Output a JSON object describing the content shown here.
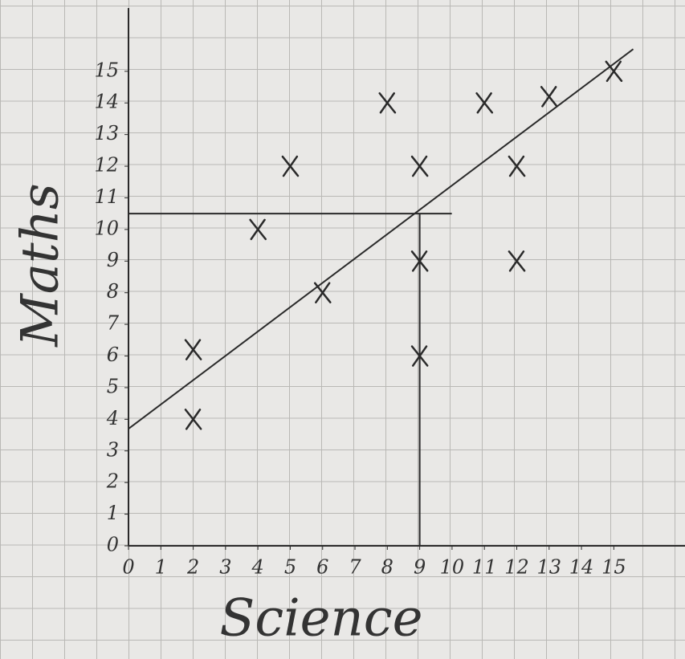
{
  "chart_data": {
    "type": "scatter",
    "xlabel": "Science",
    "ylabel": "Maths",
    "x": [
      2,
      2,
      4,
      5,
      6,
      8,
      9,
      9,
      9,
      11,
      12,
      12,
      13,
      15
    ],
    "values": [
      4,
      6.2,
      10,
      12,
      8,
      14,
      12,
      9,
      6,
      14,
      12,
      9,
      14.2,
      15
    ],
    "color": "#2a2a2a",
    "trendline": {
      "x": [
        0,
        15.6
      ],
      "y": [
        3.7,
        15.7
      ]
    },
    "reading": {
      "x": 9,
      "y": 10.5
    },
    "xlim": [
      0,
      17.2
    ],
    "ylim": [
      0,
      17
    ],
    "xticks": [
      0,
      1,
      2,
      3,
      4,
      5,
      6,
      7,
      8,
      9,
      10,
      11,
      12,
      13,
      14,
      15
    ],
    "yticks": [
      0,
      1,
      2,
      3,
      4,
      5,
      6,
      7,
      8,
      9,
      10,
      11,
      12,
      13,
      14,
      15
    ]
  }
}
